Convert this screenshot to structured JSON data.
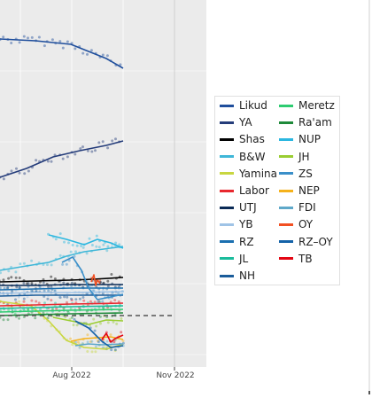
{
  "chart_data": {
    "type": "line",
    "title": "",
    "xlabel": "",
    "ylabel": "",
    "x_ticks": [
      "Aug 2022",
      "Nov 2022"
    ],
    "grid": true,
    "legend_position": "right",
    "threshold_dashed": true,
    "series": [
      {
        "name": "Likud",
        "color": "#1f4e9c",
        "trend": [
          [
            0,
            44
          ],
          [
            40,
            46
          ],
          [
            80,
            50
          ],
          [
            100,
            58
          ],
          [
            120,
            66
          ],
          [
            139,
            77
          ]
        ]
      },
      {
        "name": "YA",
        "color": "#243c7a",
        "trend": [
          [
            0,
            200
          ],
          [
            30,
            190
          ],
          [
            60,
            177
          ],
          [
            90,
            170
          ],
          [
            120,
            164
          ],
          [
            139,
            159
          ]
        ]
      },
      {
        "name": "Shas",
        "color": "#000000",
        "trend": [
          [
            0,
            318
          ],
          [
            40,
            317
          ],
          [
            80,
            316
          ],
          [
            105,
            315
          ],
          [
            139,
            313
          ]
        ]
      },
      {
        "name": "B&W",
        "color": "#3fb7d8",
        "trend": [
          [
            0,
            305
          ],
          [
            30,
            300
          ],
          [
            55,
            296
          ],
          [
            75,
            289
          ],
          [
            95,
            284
          ],
          [
            139,
            278
          ]
        ]
      },
      {
        "name": "Yamina",
        "color": "#c8d640",
        "trend": [
          [
            0,
            340
          ],
          [
            35,
            345
          ],
          [
            55,
            362
          ],
          [
            75,
            384
          ],
          [
            95,
            392
          ],
          [
            120,
            394
          ],
          [
            139,
            388
          ]
        ]
      },
      {
        "name": "Labor",
        "color": "#e8282e",
        "trend": [
          [
            0,
            345
          ],
          [
            40,
            344
          ],
          [
            80,
            343
          ],
          [
            139,
            342
          ]
        ]
      },
      {
        "name": "UTJ",
        "color": "#0a2a55",
        "trend": [
          [
            0,
            322
          ],
          [
            40,
            322
          ],
          [
            80,
            321
          ],
          [
            139,
            321
          ]
        ]
      },
      {
        "name": "YB",
        "color": "#9fc3e6",
        "trend": [
          [
            0,
            331
          ],
          [
            40,
            330
          ],
          [
            80,
            330
          ],
          [
            139,
            329
          ]
        ]
      },
      {
        "name": "RZ",
        "color": "#1a6fb0",
        "trend": [
          [
            0,
            327
          ],
          [
            40,
            326
          ],
          [
            80,
            325
          ],
          [
            139,
            325
          ]
        ]
      },
      {
        "name": "JL",
        "color": "#1abc9c",
        "trend": [
          [
            0,
            348
          ],
          [
            40,
            347
          ],
          [
            80,
            346
          ],
          [
            139,
            345
          ]
        ]
      },
      {
        "name": "NH",
        "color": "#1a5c9a",
        "trend": [
          [
            0,
            334
          ],
          [
            40,
            333
          ],
          [
            80,
            333
          ],
          [
            139,
            333
          ]
        ]
      },
      {
        "name": "Meretz",
        "color": "#2ecc71",
        "trend": [
          [
            0,
            352
          ],
          [
            40,
            351
          ],
          [
            80,
            350
          ],
          [
            139,
            349
          ]
        ]
      },
      {
        "name": "Ra'am",
        "color": "#1e8a3a",
        "trend": [
          [
            0,
            356
          ],
          [
            40,
            355
          ],
          [
            80,
            354
          ],
          [
            139,
            353
          ]
        ]
      },
      {
        "name": "NUP",
        "color": "#2bb7e0",
        "trend": [
          [
            55,
            265
          ],
          [
            75,
            270
          ],
          [
            95,
            276
          ],
          [
            110,
            270
          ],
          [
            125,
            274
          ],
          [
            139,
            280
          ]
        ]
      },
      {
        "name": "JH",
        "color": "#9acd32",
        "trend": [
          [
            60,
            358
          ],
          [
            80,
            362
          ],
          [
            100,
            366
          ],
          [
            120,
            361
          ],
          [
            139,
            362
          ]
        ]
      },
      {
        "name": "ZS",
        "color": "#3a8fc9",
        "trend": [
          [
            70,
            296
          ],
          [
            82,
            290
          ],
          [
            92,
            305
          ],
          [
            100,
            325
          ],
          [
            110,
            338
          ],
          [
            139,
            332
          ]
        ]
      },
      {
        "name": "NEP",
        "color": "#f5b21b",
        "trend": [
          [
            80,
            385
          ],
          [
            95,
            382
          ],
          [
            110,
            381
          ],
          [
            125,
            380
          ],
          [
            139,
            383
          ]
        ]
      },
      {
        "name": "FDI",
        "color": "#5fa8c9",
        "trend": [
          [
            85,
            390
          ],
          [
            100,
            388
          ],
          [
            115,
            389
          ],
          [
            139,
            388
          ]
        ]
      },
      {
        "name": "OY",
        "color": "#f25022",
        "trend": [
          [
            103,
            318
          ],
          [
            106,
            310
          ],
          [
            108,
            322
          ],
          [
            110,
            316
          ],
          [
            113,
            320
          ]
        ]
      },
      {
        "name": "RZ–OY",
        "color": "#1462a8",
        "trend": [
          [
            85,
            362
          ],
          [
            100,
            370
          ],
          [
            115,
            385
          ],
          [
            125,
            392
          ],
          [
            139,
            390
          ]
        ]
      },
      {
        "name": "TB",
        "color": "#e30613",
        "trend": [
          [
            115,
            383
          ],
          [
            120,
            376
          ],
          [
            125,
            386
          ],
          [
            130,
            382
          ],
          [
            139,
            378
          ]
        ]
      }
    ]
  }
}
